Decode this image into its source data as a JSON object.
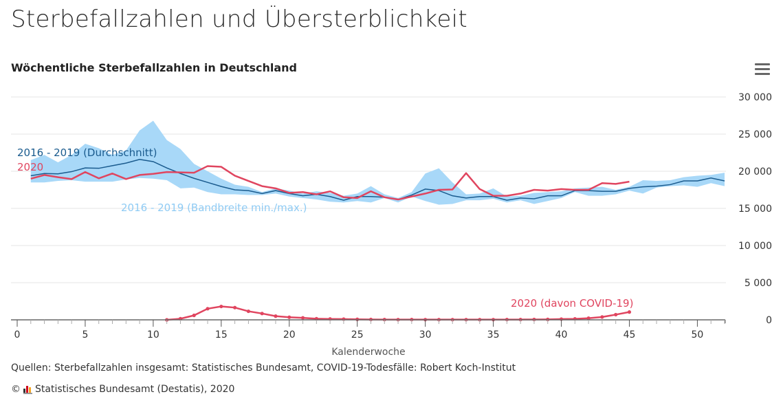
{
  "page": {
    "title": "Sterbefallzahlen und Übersterblichkeit",
    "menu_icon": "hamburger-menu-icon"
  },
  "footer": {
    "source": "Quellen: Sterbefallzahlen insgesamt: Statistisches Bundesamt, COVID-19-Todesfälle: Robert Koch-Institut",
    "copyright_symbol": "©",
    "copyright_text": "Statistisches Bundesamt (Destatis), 2020"
  },
  "colors": {
    "band": "#a8d8f8",
    "average": "#1a5b8e",
    "y2020": "#e0455f",
    "covid": "#e0455f",
    "band_label": "#8fcbf4",
    "grid": "#e6e6e6",
    "axis": "#666666"
  },
  "chart_data": {
    "type": "line",
    "title": "Wöchentliche Sterbefallzahlen in Deutschland",
    "xlabel": "Kalenderwoche",
    "ylabel": "",
    "xlim": [
      0,
      52
    ],
    "ylim": [
      0,
      30000
    ],
    "x_ticks": [
      0,
      5,
      10,
      15,
      20,
      25,
      30,
      35,
      40,
      45,
      50
    ],
    "y_ticks": [
      0,
      5000,
      10000,
      15000,
      20000,
      25000,
      30000
    ],
    "y_tick_labels": [
      "0",
      "5 000",
      "10 000",
      "15 000",
      "20 000",
      "25 000",
      "30 000"
    ],
    "grid": true,
    "y_axis_position": "right",
    "series": [
      {
        "name": "2016 - 2019 (Bandbreite min./max.)",
        "kind": "range",
        "x_start": 1,
        "min": [
          18500,
          18500,
          18700,
          18800,
          18600,
          18600,
          18600,
          18900,
          19100,
          19000,
          18800,
          17700,
          17800,
          17200,
          16900,
          16900,
          16800,
          16800,
          17000,
          16600,
          16400,
          16200,
          15900,
          15800,
          16000,
          15800,
          16400,
          15800,
          16600,
          16000,
          15500,
          15600,
          16100,
          16100,
          16300,
          15800,
          16100,
          15600,
          16000,
          16400,
          17200,
          16700,
          16700,
          16900,
          17400,
          17000,
          17800,
          18000,
          18100,
          17900,
          18400,
          18000
        ],
        "max": [
          21500,
          22200,
          21200,
          22200,
          23700,
          23100,
          22200,
          22800,
          25500,
          26800,
          24200,
          23000,
          21000,
          20000,
          19000,
          18200,
          17900,
          17200,
          17700,
          17400,
          17000,
          17300,
          17100,
          16700,
          17000,
          18000,
          16900,
          16400,
          17200,
          19700,
          20400,
          18500,
          16900,
          17000,
          17700,
          16600,
          16700,
          17100,
          17200,
          17300,
          17700,
          17800,
          17900,
          17500,
          17900,
          18800,
          18700,
          18800,
          19200,
          19400,
          19500,
          19800
        ]
      },
      {
        "name": "2016 - 2019 (Durchschnitt)",
        "kind": "line",
        "x_start": 1,
        "values": [
          19400,
          19700,
          19650,
          19950,
          20450,
          20400,
          20750,
          21100,
          21600,
          21300,
          20450,
          19700,
          19050,
          18500,
          17950,
          17500,
          17400,
          17000,
          17400,
          17000,
          16700,
          16900,
          16600,
          16100,
          16600,
          16600,
          16500,
          16200,
          16800,
          17600,
          17400,
          16700,
          16400,
          16600,
          16600,
          16100,
          16400,
          16300,
          16700,
          16700,
          17400,
          17400,
          17300,
          17300,
          17700,
          17900,
          18000,
          18200,
          18700,
          18700,
          19100,
          18700
        ]
      },
      {
        "name": "2020",
        "kind": "line",
        "x_start": 1,
        "values": [
          19000,
          19500,
          19200,
          18950,
          19900,
          19050,
          19700,
          18950,
          19500,
          19650,
          19900,
          19850,
          19800,
          20700,
          20600,
          19400,
          18700,
          18000,
          17700,
          17100,
          17200,
          16900,
          17300,
          16500,
          16400,
          17300,
          16500,
          16200,
          16600,
          17000,
          17500,
          17550,
          19750,
          17600,
          16700,
          16700,
          17000,
          17500,
          17400,
          17600,
          17500,
          17500,
          18400,
          18300,
          18600
        ]
      },
      {
        "name": "2020 (davon COVID-19)",
        "kind": "line-markers",
        "x_start": 11,
        "values": [
          0,
          150,
          600,
          1500,
          1800,
          1650,
          1150,
          850,
          500,
          350,
          270,
          150,
          120,
          100,
          70,
          50,
          40,
          30,
          40,
          30,
          30,
          30,
          30,
          30,
          30,
          40,
          40,
          50,
          60,
          100,
          130,
          220,
          380,
          700,
          1050
        ]
      }
    ],
    "annotations": [
      {
        "text": "2016 - 2019 (Durchschnitt)",
        "series": "average"
      },
      {
        "text": "2020",
        "series": "2020"
      },
      {
        "text": "2016 - 2019 (Bandbreite min./max.)",
        "series": "band"
      },
      {
        "text": "2020 (davon COVID-19)",
        "series": "covid"
      }
    ]
  }
}
